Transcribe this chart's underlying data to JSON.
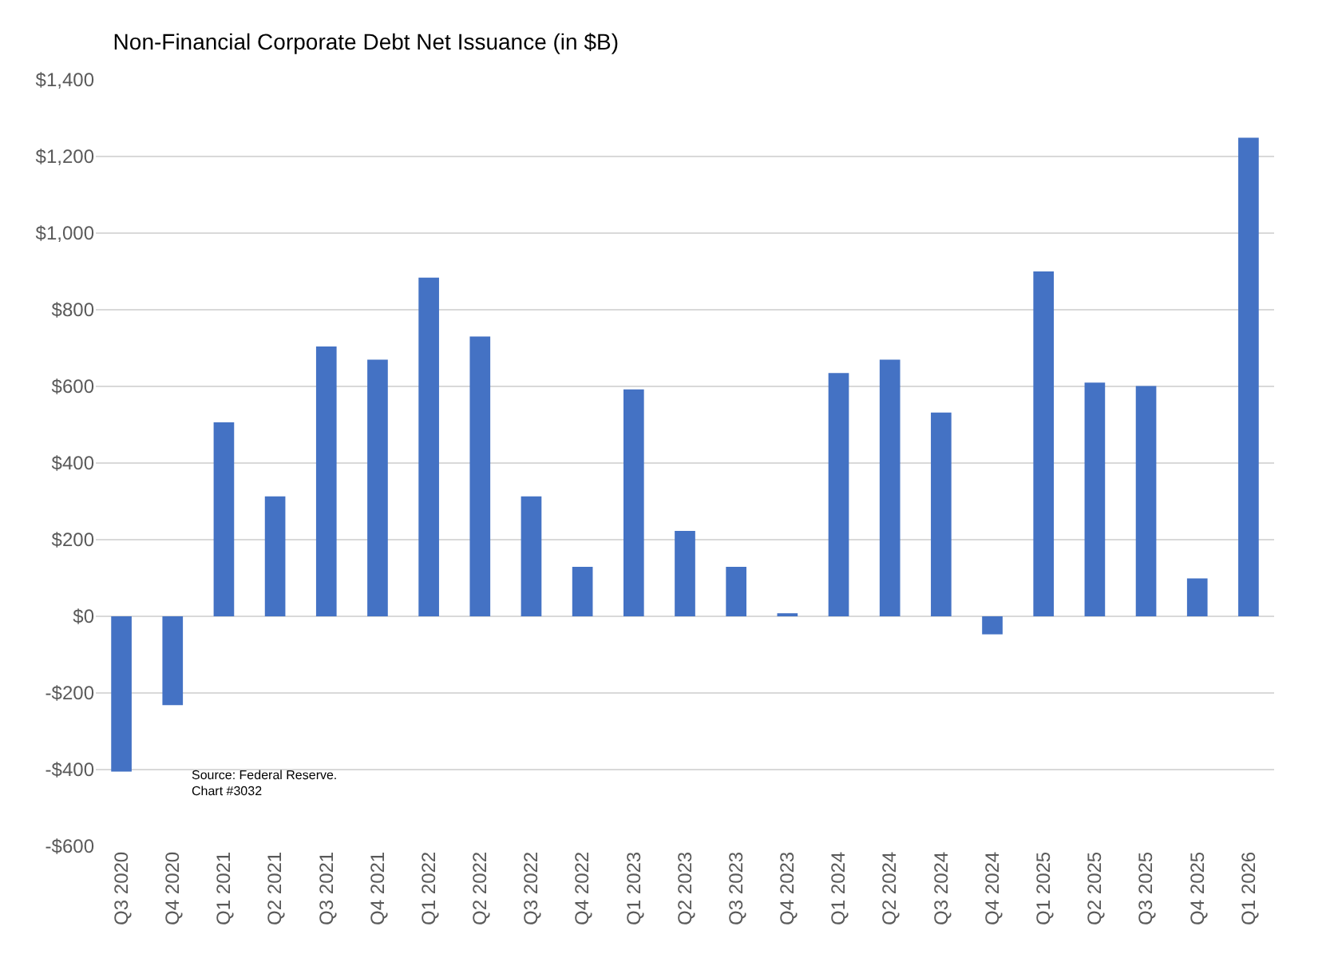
{
  "chart_data": {
    "type": "bar",
    "title": "Non-Financial Corporate Debt Net Issuance (in $B)",
    "categories": [
      "Q3 2020",
      "Q4 2020",
      "Q1 2021",
      "Q2 2021",
      "Q3 2021",
      "Q4 2021",
      "Q1 2022",
      "Q2 2022",
      "Q3 2022",
      "Q4 2022",
      "Q1 2023",
      "Q2 2023",
      "Q3 2023",
      "Q4 2023",
      "Q1 2024",
      "Q2 2024",
      "Q3 2024",
      "Q4 2024",
      "Q1 2025",
      "Q2 2025",
      "Q3 2025",
      "Q4 2025",
      "Q1 2026"
    ],
    "values": [
      -405,
      -232,
      506,
      313,
      704,
      670,
      884,
      730,
      313,
      129,
      592,
      223,
      129,
      8,
      635,
      670,
      532,
      -47,
      900,
      610,
      601,
      99,
      1249
    ],
    "color": "#4472c4",
    "ylim": [
      -600,
      1400
    ],
    "yticks": [
      {
        "value": -600,
        "label": "-$600"
      },
      {
        "value": -400,
        "label": "-$400"
      },
      {
        "value": -200,
        "label": "-$200"
      },
      {
        "value": 0,
        "label": "$0"
      },
      {
        "value": 200,
        "label": "$200"
      },
      {
        "value": 400,
        "label": "$400"
      },
      {
        "value": 600,
        "label": "$600"
      },
      {
        "value": 800,
        "label": "$800"
      },
      {
        "value": 1000,
        "label": "$1,000"
      },
      {
        "value": 1200,
        "label": "$1,200"
      },
      {
        "value": 1400,
        "label": "$1,400"
      }
    ],
    "grid": "y",
    "annotations": [
      "Source: Federal Reserve.",
      "Chart #3032"
    ]
  }
}
